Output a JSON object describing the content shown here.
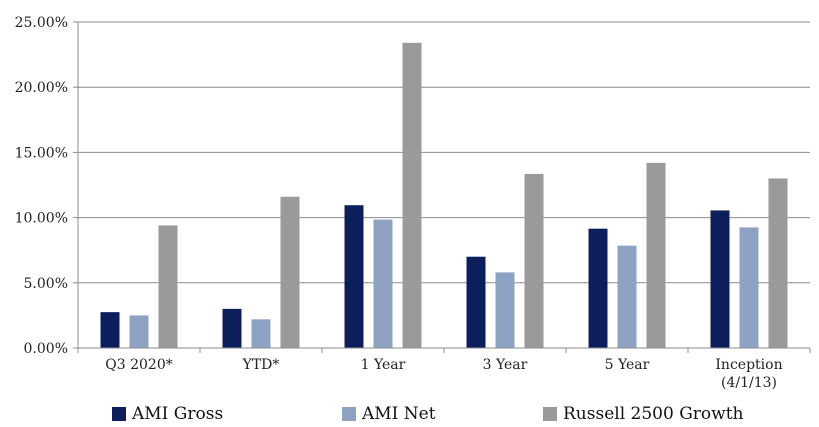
{
  "chart_data": {
    "type": "bar",
    "title": "",
    "xlabel": "",
    "ylabel": "",
    "ylim": [
      0,
      25
    ],
    "y_ticks": [
      "0.00%",
      "5.00%",
      "10.00%",
      "15.00%",
      "20.00%",
      "25.00%"
    ],
    "grid": "horizontal",
    "legend_position": "bottom",
    "categories": [
      [
        "Q3 2020*"
      ],
      [
        "YTD*"
      ],
      [
        "1 Year"
      ],
      [
        "3 Year"
      ],
      [
        "5 Year"
      ],
      [
        "Inception",
        "(4/1/13)"
      ]
    ],
    "series": [
      {
        "name": "AMI Gross",
        "color": "#0c1f5c",
        "values": [
          2.75,
          3.0,
          10.95,
          7.0,
          9.15,
          10.55
        ]
      },
      {
        "name": "AMI Net",
        "color": "#8ea3c4",
        "values": [
          2.5,
          2.2,
          9.85,
          5.8,
          7.85,
          9.25
        ]
      },
      {
        "name": "Russell 2500 Growth",
        "color": "#9a9a9a",
        "values": [
          9.4,
          11.6,
          23.4,
          13.35,
          14.2,
          13.0
        ]
      }
    ]
  }
}
